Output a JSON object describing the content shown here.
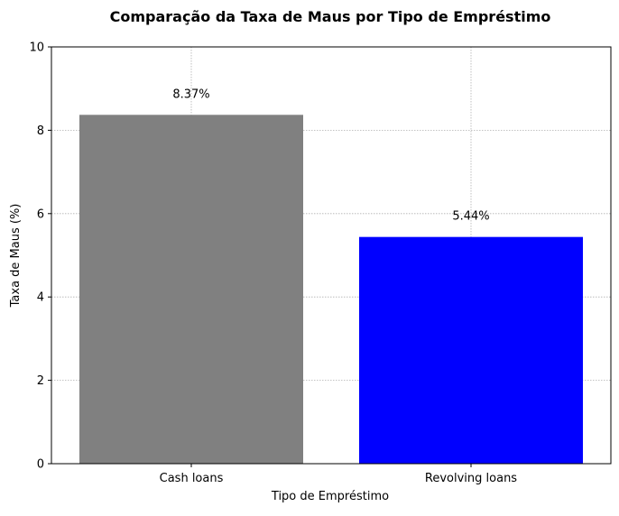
{
  "chart_data": {
    "type": "bar",
    "title": "Comparação da Taxa de Maus por Tipo de Empréstimo",
    "xlabel": "Tipo de Empréstimo",
    "ylabel": "Taxa de Maus (%)",
    "categories": [
      "Cash loans",
      "Revolving loans"
    ],
    "values": [
      8.37,
      5.44
    ],
    "data_labels": [
      "8.37%",
      "5.44%"
    ],
    "bar_colors": [
      "#808080",
      "#0000ff"
    ],
    "ylim": [
      0,
      10
    ],
    "yticks": [
      0,
      2,
      4,
      6,
      8,
      10
    ],
    "grid": true
  }
}
